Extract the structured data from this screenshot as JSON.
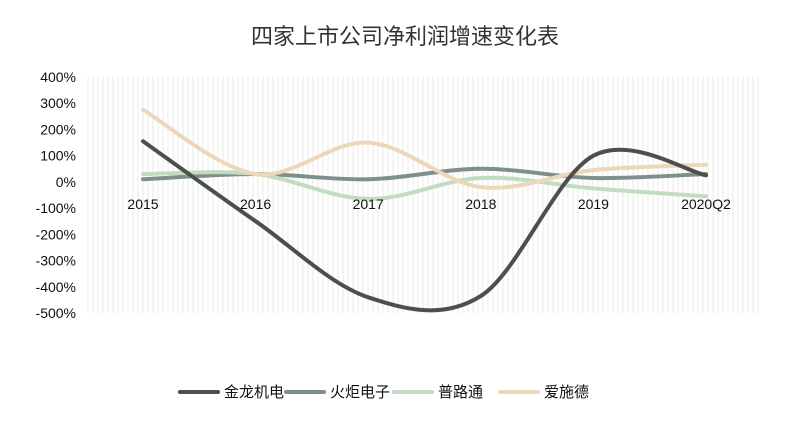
{
  "chart_data": {
    "type": "line",
    "title": "四家上市公司净利润增速变化表",
    "xlabel": "",
    "ylabel": "",
    "categories": [
      "2015",
      "2016",
      "2017",
      "2018",
      "2019",
      "2020Q2"
    ],
    "ylim": [
      -500,
      400
    ],
    "y_ticks": [
      400,
      300,
      200,
      100,
      0,
      -100,
      -200,
      -300,
      -400,
      -500
    ],
    "y_tick_labels": [
      "400%",
      "300%",
      "200%",
      "100%",
      "0%",
      "-100%",
      "-200%",
      "-300%",
      "-400%",
      "-500%"
    ],
    "smooth": true,
    "grid": "vertical stripes",
    "legend_position": "bottom",
    "series": [
      {
        "name": "金龙机电",
        "color": "#4b504e",
        "values": [
          155,
          -150,
          -440,
          -435,
          100,
          25
        ]
      },
      {
        "name": "火炬电子",
        "color": "#7f8f8c",
        "values": [
          10,
          30,
          10,
          50,
          15,
          30
        ]
      },
      {
        "name": "普路通",
        "color": "#c2dcc1",
        "values": [
          30,
          30,
          -65,
          15,
          -25,
          -55
        ]
      },
      {
        "name": "爱施德",
        "color": "#ecd8b9",
        "values": [
          275,
          30,
          150,
          -20,
          45,
          65
        ]
      }
    ]
  }
}
